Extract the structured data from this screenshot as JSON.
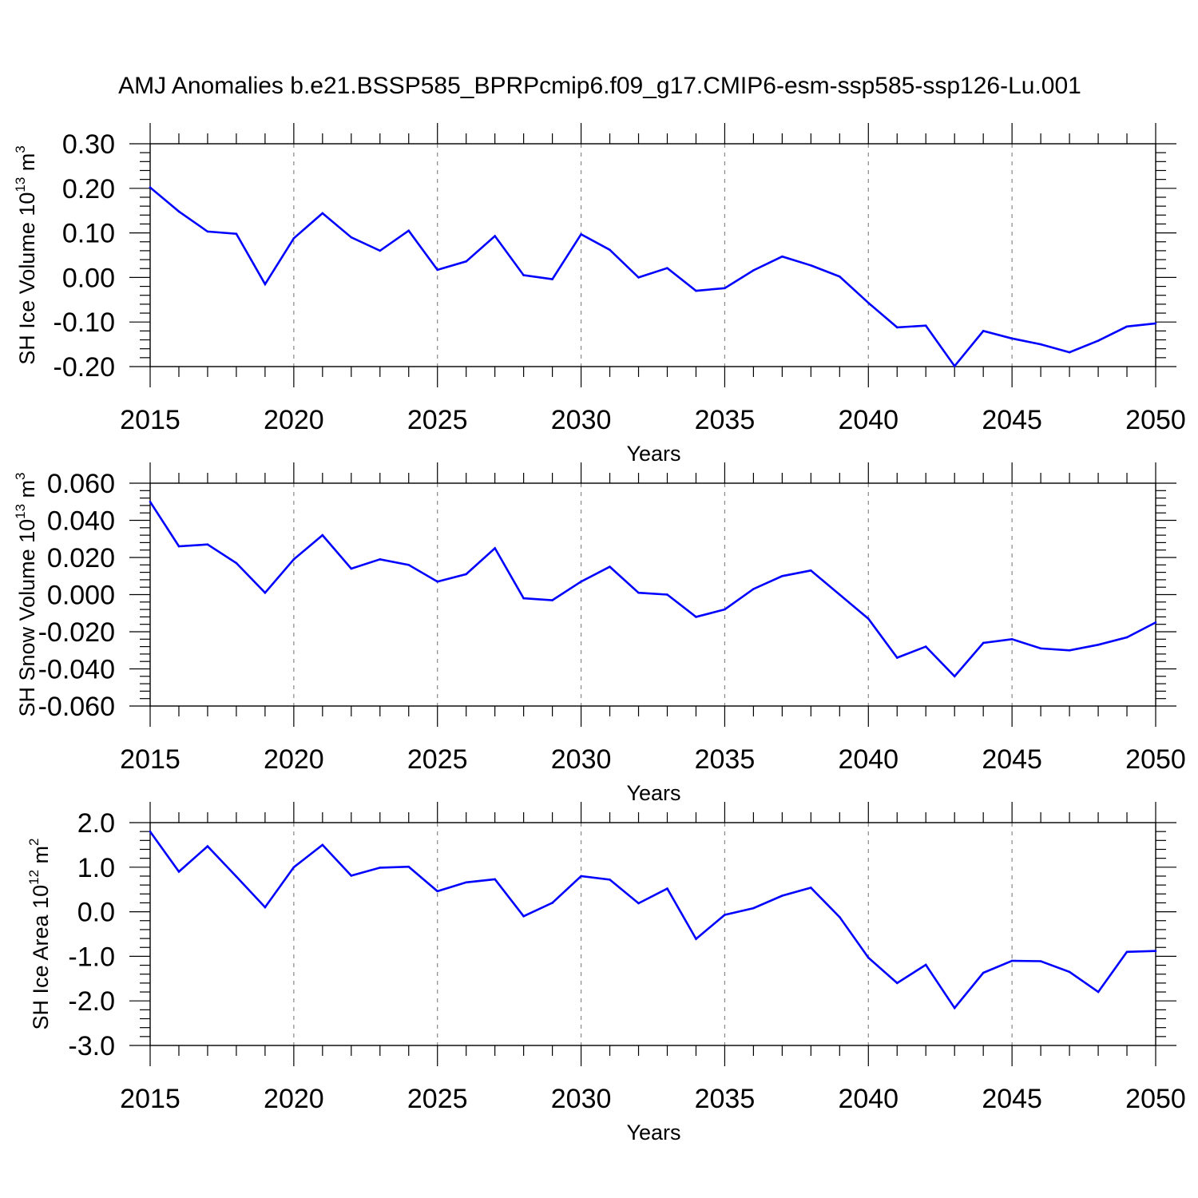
{
  "chart_data": {
    "title": "AMJ Anomalies b.e21.BSSP585_BPRPcmip6.f09_g17.CMIP6-esm-ssp585-ssp126-Lu.001",
    "series_color": "#0000ff",
    "panels": [
      {
        "type": "line",
        "xlabel": "Years",
        "ylabel": {
          "text": "SH Ice Volume 10",
          "exp": "13",
          "unit": " m",
          "unit_exp": "3"
        },
        "xlim": [
          2015,
          2050
        ],
        "xticks": [
          "2015",
          "2020",
          "2025",
          "2030",
          "2035",
          "2040",
          "2045",
          "2050"
        ],
        "ylim": [
          -0.2,
          0.3
        ],
        "yticks": [
          0.3,
          0.2,
          0.1,
          0.0,
          -0.1,
          -0.2
        ],
        "ytick_labels": [
          "0.30",
          "0.20",
          "0.10",
          "0.00",
          "-0.10",
          "-0.20"
        ],
        "x": [
          2015,
          2016,
          2017,
          2018,
          2019,
          2020,
          2021,
          2022,
          2023,
          2024,
          2025,
          2026,
          2027,
          2028,
          2029,
          2030,
          2031,
          2032,
          2033,
          2034,
          2035,
          2036,
          2037,
          2038,
          2039,
          2040,
          2041,
          2042,
          2043,
          2044,
          2045,
          2046,
          2047,
          2048,
          2049,
          2050
        ],
        "values": [
          0.202,
          0.148,
          0.103,
          0.098,
          -0.015,
          0.088,
          0.144,
          0.09,
          0.06,
          0.105,
          0.017,
          0.036,
          0.093,
          0.005,
          -0.004,
          0.097,
          0.062,
          0.0,
          0.021,
          -0.03,
          -0.024,
          0.016,
          0.047,
          0.027,
          0.002,
          -0.057,
          -0.112,
          -0.108,
          -0.199,
          -0.12,
          -0.137,
          -0.15,
          -0.168,
          -0.142,
          -0.11,
          -0.103
        ]
      },
      {
        "type": "line",
        "xlabel": "Years",
        "ylabel": {
          "text": "SH Snow Volume 10",
          "exp": "13",
          "unit": " m",
          "unit_exp": "3"
        },
        "xlim": [
          2015,
          2050
        ],
        "xticks": [
          "2015",
          "2020",
          "2025",
          "2030",
          "2035",
          "2040",
          "2045",
          "2050"
        ],
        "ylim": [
          -0.06,
          0.06
        ],
        "yticks": [
          0.06,
          0.04,
          0.02,
          0.0,
          -0.02,
          -0.04,
          -0.06
        ],
        "ytick_labels": [
          "0.060",
          "0.040",
          "0.020",
          "0.000",
          "-0.020",
          "-0.040",
          "-0.060"
        ],
        "x": [
          2015,
          2016,
          2017,
          2018,
          2019,
          2020,
          2021,
          2022,
          2023,
          2024,
          2025,
          2026,
          2027,
          2028,
          2029,
          2030,
          2031,
          2032,
          2033,
          2034,
          2035,
          2036,
          2037,
          2038,
          2039,
          2040,
          2041,
          2042,
          2043,
          2044,
          2045,
          2046,
          2047,
          2048,
          2049,
          2050
        ],
        "values": [
          0.05,
          0.026,
          0.027,
          0.017,
          0.001,
          0.019,
          0.032,
          0.014,
          0.019,
          0.016,
          0.007,
          0.011,
          0.025,
          -0.002,
          -0.003,
          0.007,
          0.015,
          0.001,
          0.0,
          -0.012,
          -0.008,
          0.003,
          0.01,
          0.013,
          0.0,
          -0.013,
          -0.034,
          -0.028,
          -0.044,
          -0.026,
          -0.024,
          -0.029,
          -0.03,
          -0.027,
          -0.023,
          -0.015
        ]
      },
      {
        "type": "line",
        "xlabel": "Years",
        "ylabel": {
          "text": "SH Ice Area 10",
          "exp": "12",
          "unit": " m",
          "unit_exp": "2"
        },
        "xlim": [
          2015,
          2050
        ],
        "xticks": [
          "2015",
          "2020",
          "2025",
          "2030",
          "2035",
          "2040",
          "2045",
          "2050"
        ],
        "ylim": [
          -3.0,
          2.0
        ],
        "yticks": [
          2.0,
          1.0,
          0.0,
          -1.0,
          -2.0,
          -3.0
        ],
        "ytick_labels": [
          "2.0",
          "1.0",
          "0.0",
          "-1.0",
          "-2.0",
          "-3.0"
        ],
        "x": [
          2015,
          2016,
          2017,
          2018,
          2019,
          2020,
          2021,
          2022,
          2023,
          2024,
          2025,
          2026,
          2027,
          2028,
          2029,
          2030,
          2031,
          2032,
          2033,
          2034,
          2035,
          2036,
          2037,
          2038,
          2039,
          2040,
          2041,
          2042,
          2043,
          2044,
          2045,
          2046,
          2047,
          2048,
          2049,
          2050
        ],
        "values": [
          1.8,
          0.9,
          1.47,
          0.79,
          0.1,
          1.0,
          1.5,
          0.81,
          0.99,
          1.01,
          0.46,
          0.66,
          0.73,
          -0.1,
          0.2,
          0.8,
          0.72,
          0.19,
          0.52,
          -0.61,
          -0.07,
          0.08,
          0.36,
          0.54,
          -0.12,
          -1.03,
          -1.6,
          -1.19,
          -2.16,
          -1.37,
          -1.1,
          -1.11,
          -1.35,
          -1.8,
          -0.9,
          -0.88
        ]
      }
    ]
  }
}
